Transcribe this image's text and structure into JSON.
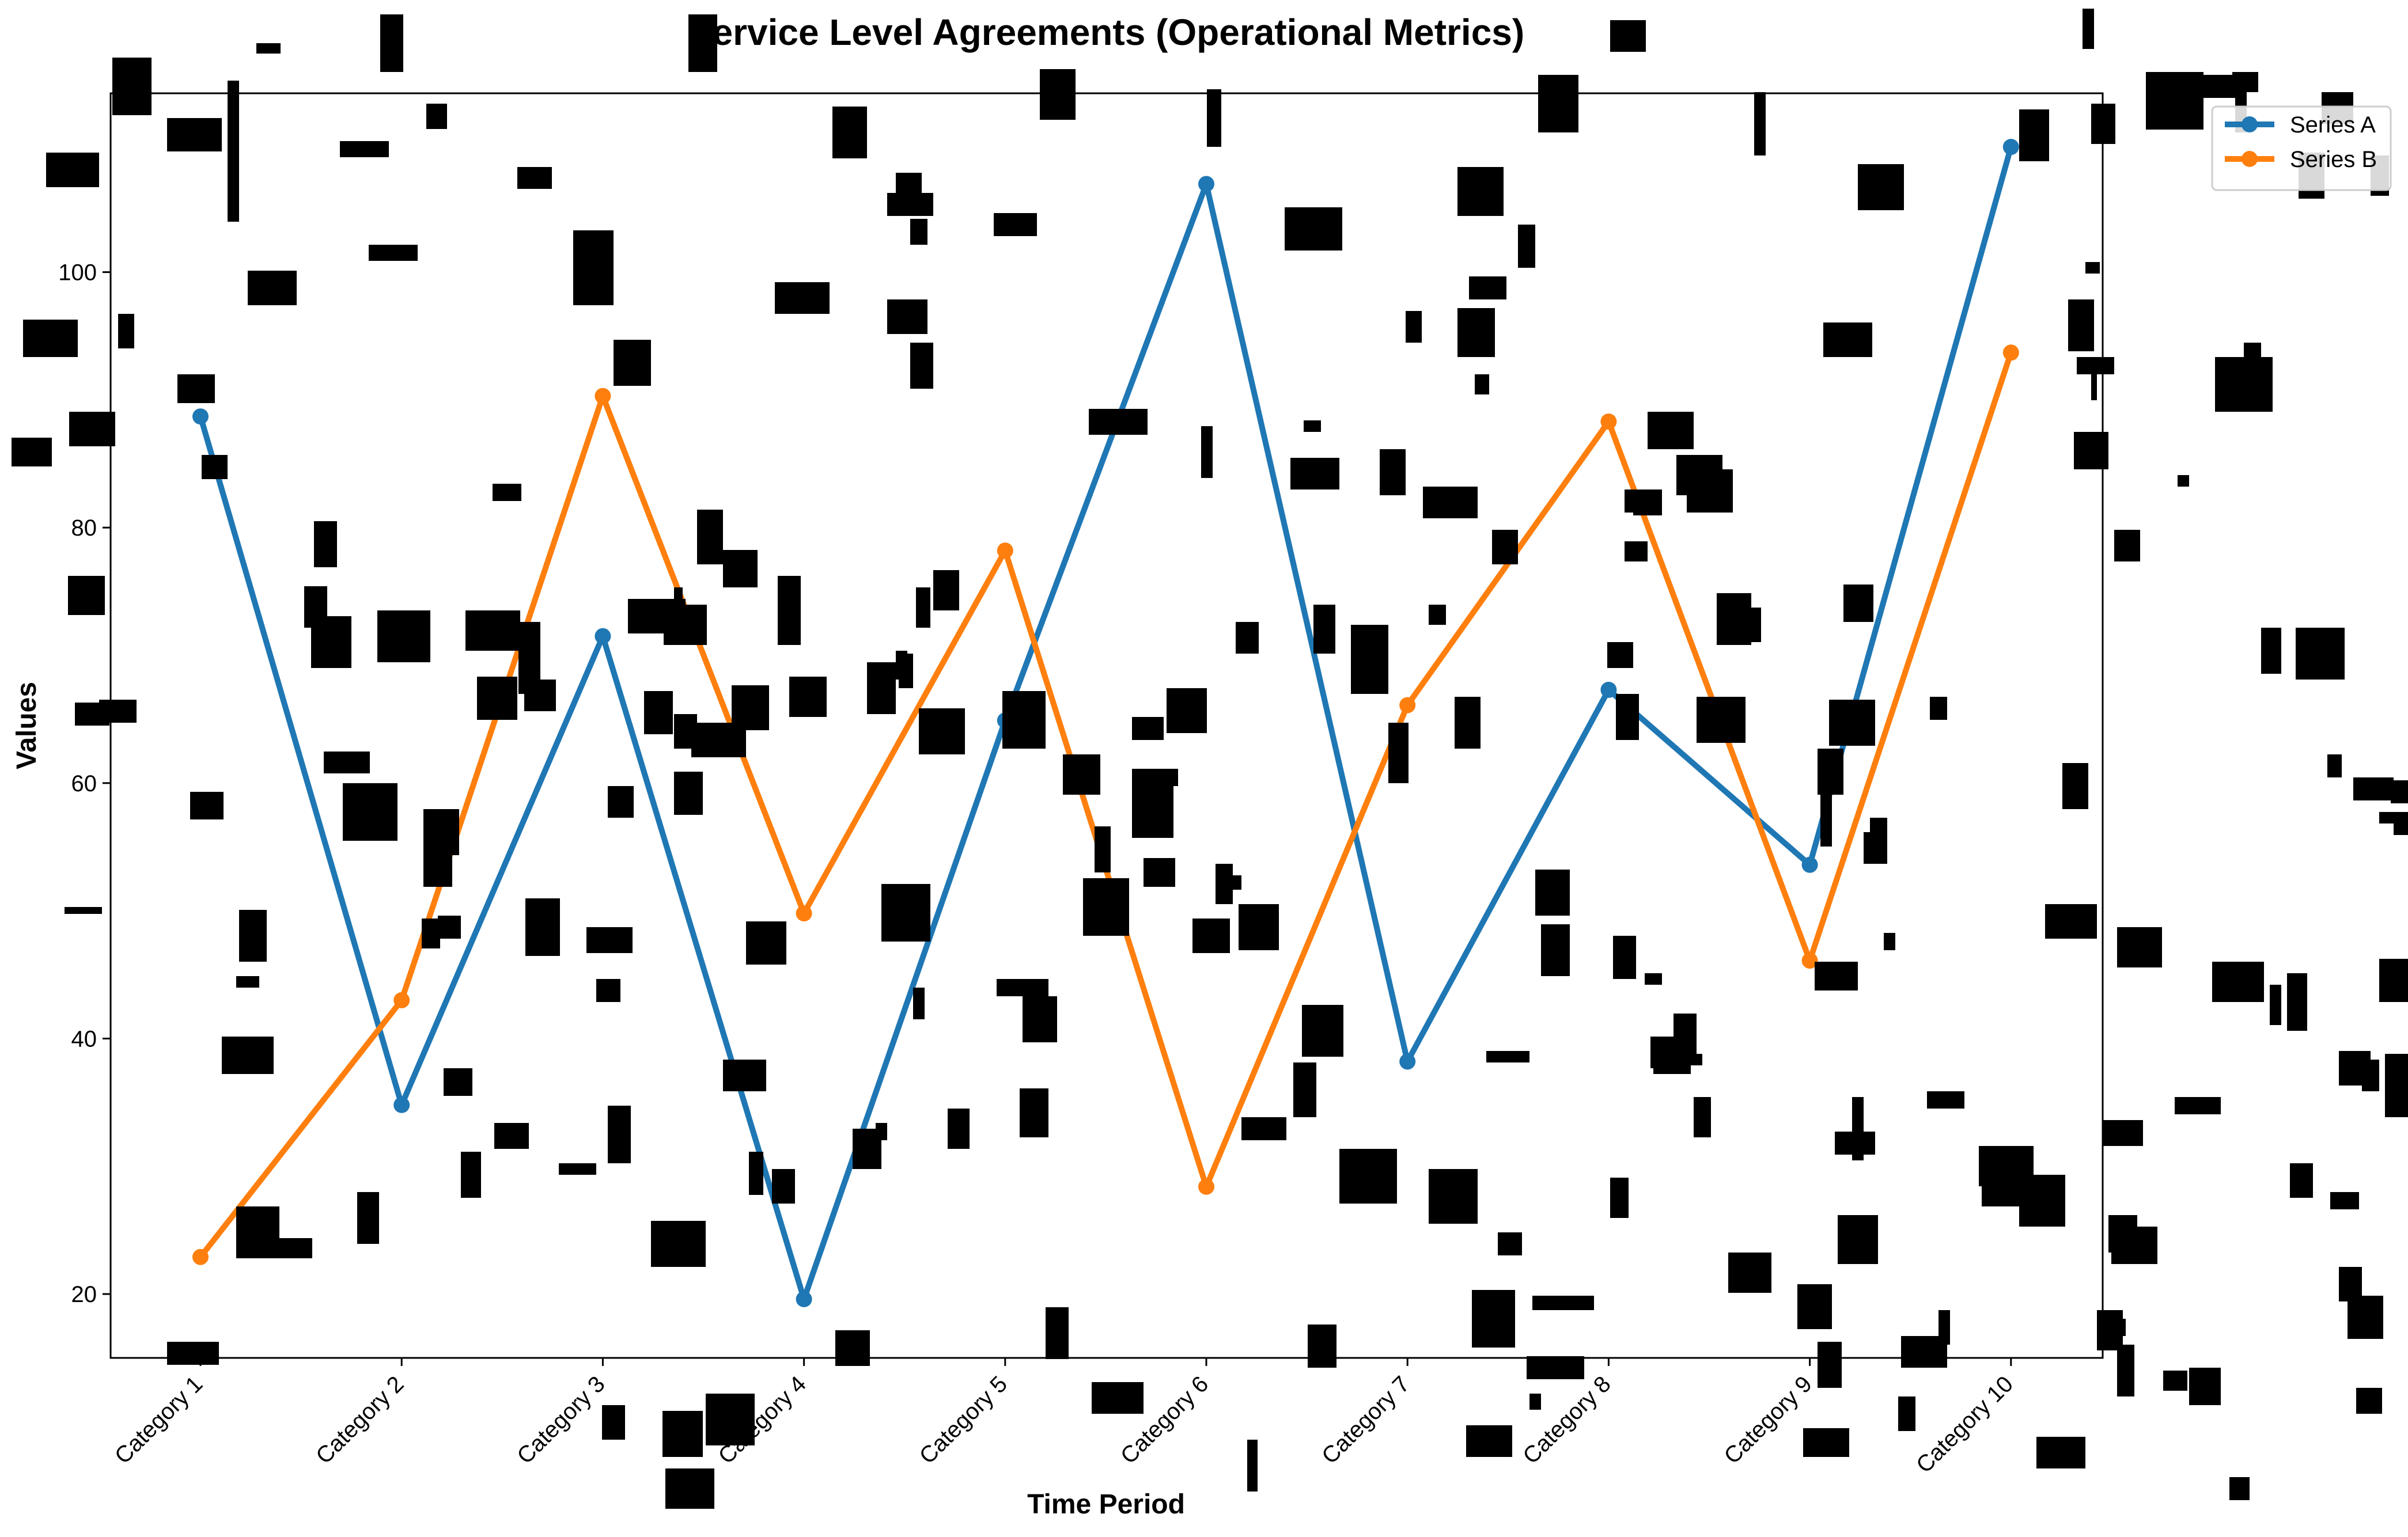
{
  "chart_data": {
    "type": "line",
    "title": "Service Level Agreements (Operational Metrics)",
    "xlabel": "Time Period",
    "ylabel": "Values",
    "categories": [
      "Category 1",
      "Category 2",
      "Category 3",
      "Category 4",
      "Category 5",
      "Category 6",
      "Category 7",
      "Category 8",
      "Category 9",
      "Category 10"
    ],
    "series": [
      {
        "name": "Series A",
        "color": "#1f77b4",
        "values": [
          88.7,
          34.8,
          71.5,
          19.6,
          64.9,
          106.9,
          38.2,
          67.3,
          53.6,
          109.8
        ]
      },
      {
        "name": "Series B",
        "color": "#ff7f0e",
        "values": [
          22.9,
          43.0,
          90.3,
          49.8,
          78.2,
          28.4,
          66.1,
          88.3,
          46.1,
          93.7
        ]
      }
    ],
    "ylim": [
      15,
      114
    ],
    "yticks": [
      20,
      40,
      60,
      80,
      100
    ],
    "grid": false,
    "legend": "top-right",
    "occlusion_color": "#000000"
  }
}
